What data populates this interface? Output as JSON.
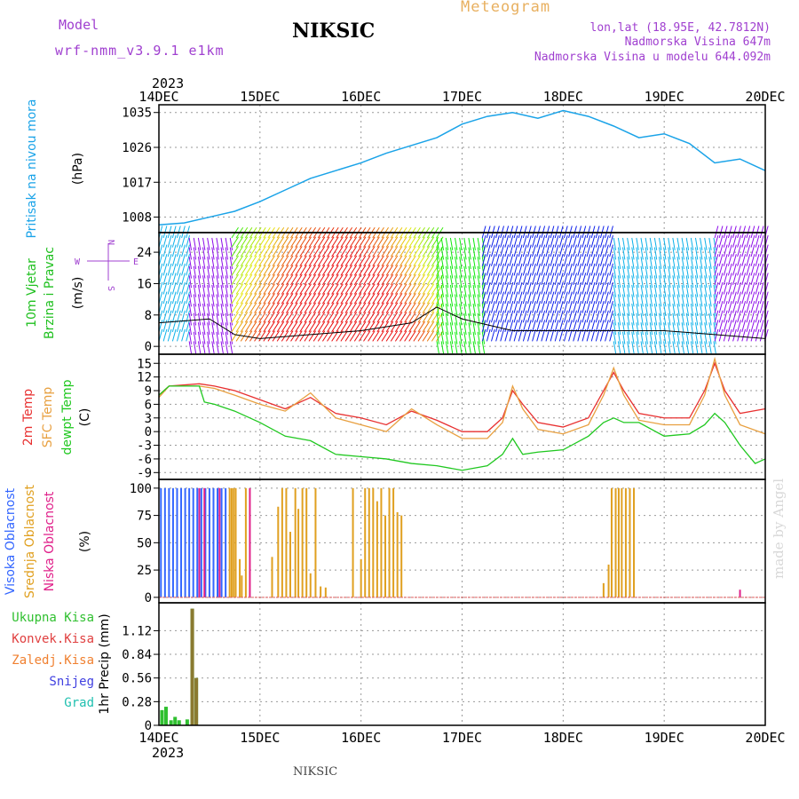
{
  "header": {
    "model_label": "Model",
    "model_name": "wrf-nmm_v3.9.1 e1km",
    "station": "NIKSIC",
    "title": "Meteogram",
    "lonlat": "lon,lat (18.95E, 42.7812N)",
    "altitude": "Nadmorska Visina 647m",
    "altitude_model": "Nadmorska Visina u modelu 644.092m"
  },
  "footer": {
    "station": "NIKSIC",
    "credit": "made by Angel"
  },
  "colors": {
    "pressure": "#1aa3e8",
    "temp2m": "#e83030",
    "sfc_temp": "#e8a040",
    "dewpoint": "#20c820",
    "high_cloud": "#3366ff",
    "mid_cloud": "#e0a020",
    "low_cloud": "#e0208a",
    "total_precip": "#30c030",
    "convective": "#e04040",
    "frozen": "#f08030",
    "snow": "#4040e0",
    "hail": "#20c0b0",
    "header_purple": "#a040d0"
  },
  "chart_data": [
    {
      "type": "line",
      "panel": "pressure",
      "year": "2023",
      "ylabel": "Pritisak na nivou mora",
      "unit": "(hPa)",
      "x": [
        0,
        0.25,
        0.5,
        0.75,
        1,
        1.25,
        1.5,
        1.75,
        2,
        2.25,
        2.5,
        2.75,
        3,
        3.25,
        3.5,
        3.75,
        4,
        4.25,
        4.5,
        4.75,
        5,
        5.25,
        5.5,
        5.75,
        6
      ],
      "y": [
        1006,
        1006.5,
        1008,
        1009.5,
        1012,
        1015,
        1018,
        1020,
        1022,
        1024.5,
        1026.5,
        1028.5,
        1032,
        1034,
        1035,
        1033.5,
        1035.5,
        1034,
        1031.5,
        1028.5,
        1029.5,
        1027,
        1022,
        1023,
        1020
      ],
      "yticks": [
        "1008",
        "1017",
        "1026",
        "1035"
      ],
      "ytick_values": [
        1008,
        1017,
        1026,
        1035
      ],
      "ylim": [
        1004,
        1037
      ]
    },
    {
      "type": "barbs",
      "panel": "wind",
      "ylabel_lines": [
        "10m Vjetar",
        "Brzina i Pravac"
      ],
      "unit": "(m/s)",
      "compass": {
        "north": "N",
        "west": "W",
        "east": "E",
        "south": "S"
      },
      "x": [
        0,
        0.5,
        0.75,
        1,
        1.5,
        2,
        2.5,
        2.75,
        3,
        3.5,
        4,
        4.5,
        5,
        5.5,
        6
      ],
      "speed": [
        6,
        7,
        3,
        2,
        3,
        4,
        6,
        10,
        7,
        4,
        4,
        4,
        4,
        3,
        2
      ],
      "yticks": [
        "0",
        "8",
        "16",
        "24"
      ],
      "ytick_values": [
        0,
        8,
        16,
        24
      ],
      "ylim": [
        -2,
        29
      ]
    },
    {
      "type": "line",
      "panel": "temperature",
      "ylabel_lines": [
        "2m Temp",
        "SFC Temp",
        "dewpt Temp"
      ],
      "unit": "(C)",
      "series": [
        {
          "name": "2m Temp",
          "x": [
            0,
            0.1,
            0.4,
            0.55,
            0.75,
            1,
            1.25,
            1.5,
            1.75,
            2,
            2.25,
            2.5,
            2.75,
            3,
            3.25,
            3.4,
            3.5,
            3.6,
            3.75,
            4,
            4.25,
            4.4,
            4.5,
            4.6,
            4.75,
            5,
            5.25,
            5.4,
            5.5,
            5.6,
            5.75,
            6
          ],
          "y": [
            8,
            10,
            10.5,
            10,
            9,
            7,
            5,
            7.5,
            4,
            3,
            1.5,
            4.5,
            2.5,
            0,
            0,
            3,
            9,
            6,
            2,
            1,
            3,
            9,
            13,
            9,
            4,
            3,
            3,
            9,
            15,
            9,
            4,
            5
          ]
        },
        {
          "name": "SFC Temp",
          "x": [
            0,
            0.1,
            0.4,
            0.55,
            0.75,
            1,
            1.25,
            1.5,
            1.75,
            2,
            2.25,
            2.5,
            2.75,
            3,
            3.25,
            3.4,
            3.5,
            3.6,
            3.75,
            4,
            4.25,
            4.4,
            4.5,
            4.6,
            4.75,
            5,
            5.25,
            5.4,
            5.5,
            5.6,
            5.75,
            6
          ],
          "y": [
            7.5,
            10,
            10,
            9.5,
            8,
            6,
            4.5,
            8.5,
            3,
            1.5,
            0,
            5,
            1.5,
            -1.5,
            -1.5,
            2,
            10,
            5,
            0.5,
            -0.5,
            1.5,
            8,
            14,
            8,
            2.5,
            1.5,
            1.5,
            8,
            16,
            8,
            1.5,
            -0.5
          ]
        },
        {
          "name": "dewpt Temp",
          "x": [
            0,
            0.1,
            0.4,
            0.45,
            0.55,
            0.75,
            1,
            1.25,
            1.5,
            1.75,
            2,
            2.25,
            2.5,
            2.75,
            3,
            3.25,
            3.4,
            3.5,
            3.6,
            3.75,
            4,
            4.25,
            4.4,
            4.5,
            4.6,
            4.75,
            5,
            5.25,
            5.4,
            5.5,
            5.6,
            5.75,
            5.9,
            6
          ],
          "y": [
            8,
            10,
            10,
            6.5,
            6,
            4.5,
            2,
            -1,
            -2,
            -5,
            -5.5,
            -6,
            -7,
            -7.5,
            -8.5,
            -7.5,
            -5,
            -1.5,
            -5,
            -4.5,
            -4,
            -1,
            2,
            3,
            2,
            2,
            -1,
            -0.5,
            1.5,
            4,
            2,
            -3,
            -7,
            -6
          ]
        }
      ],
      "yticks": [
        "-9",
        "-6",
        "-3",
        "0",
        "3",
        "6",
        "9",
        "12",
        "15"
      ],
      "ytick_values": [
        -9,
        -6,
        -3,
        0,
        3,
        6,
        9,
        12,
        15
      ],
      "ylim": [
        -10.5,
        17
      ]
    },
    {
      "type": "bar",
      "panel": "clouds",
      "ylabel_lines": [
        "Visoka Oblacnost",
        "Srednja Oblacnost",
        "Niska Oblacnost"
      ],
      "unit": "(%)",
      "series": [
        {
          "name": "Visoka Oblacnost",
          "x": [
            0.02,
            0.06,
            0.1,
            0.14,
            0.18,
            0.22,
            0.26,
            0.3,
            0.34,
            0.38,
            0.42,
            0.46,
            0.5,
            0.54,
            0.58,
            0.62,
            0.66
          ],
          "values": [
            100,
            100,
            100,
            100,
            100,
            100,
            100,
            100,
            100,
            100,
            100,
            100,
            100,
            100,
            100,
            100,
            100
          ]
        },
        {
          "name": "Srednja Oblacnost",
          "x": [
            0.7,
            0.72,
            0.74,
            0.76,
            0.8,
            0.82,
            0.86,
            1.12,
            1.18,
            1.22,
            1.26,
            1.3,
            1.35,
            1.38,
            1.42,
            1.46,
            1.5,
            1.55,
            1.6,
            1.65,
            1.92,
            2.0,
            2.04,
            2.08,
            2.12,
            2.16,
            2.2,
            2.24,
            2.28,
            2.32,
            2.36,
            2.4,
            4.4,
            4.45,
            4.48,
            4.52,
            4.55,
            4.58,
            4.62,
            4.66,
            4.7
          ],
          "values": [
            100,
            100,
            100,
            100,
            35,
            20,
            100,
            37,
            83,
            100,
            100,
            60,
            100,
            81,
            100,
            100,
            22,
            100,
            10,
            9,
            100,
            35,
            100,
            100,
            100,
            88,
            100,
            75,
            100,
            100,
            78,
            75,
            13,
            30,
            100,
            100,
            100,
            100,
            100,
            100,
            100
          ]
        },
        {
          "name": "Niska Oblacnost",
          "x": [
            0.4,
            0.45,
            0.6,
            0.9,
            5.75
          ],
          "values": [
            100,
            100,
            100,
            100,
            7
          ]
        }
      ],
      "yticks": [
        "0",
        "25",
        "50",
        "75",
        "100"
      ],
      "ytick_values": [
        0,
        25,
        50,
        75,
        100
      ],
      "ylim": [
        -5,
        108
      ]
    },
    {
      "type": "bar",
      "panel": "precip",
      "legend": [
        "Ukupna Kisa",
        "Konvek.Kisa",
        "Zaledj.Kisa",
        "Snijeg",
        "Grad"
      ],
      "ylabel": "1hr Precip",
      "unit": "(mm)",
      "xticks": [
        "14DEC",
        "15DEC",
        "16DEC",
        "17DEC",
        "18DEC",
        "19DEC",
        "20DEC"
      ],
      "year": "2023",
      "series": [
        {
          "name": "Ukupna Kisa",
          "x": [
            0.03,
            0.07,
            0.12,
            0.16,
            0.2,
            0.28,
            0.33,
            0.37
          ],
          "values": [
            0.18,
            0.22,
            0.06,
            0.1,
            0.06,
            0.07,
            1.38,
            0.56
          ]
        },
        {
          "name": "Zaledj.Kisa",
          "x": [
            0.33,
            0.37
          ],
          "values": [
            1.38,
            0.56
          ]
        }
      ],
      "yticks": [
        "0",
        "0.28",
        "0.56",
        "0.84",
        "1.12"
      ],
      "ytick_values": [
        0,
        0.28,
        0.56,
        0.84,
        1.12
      ],
      "ylim": [
        0,
        1.45
      ]
    }
  ]
}
